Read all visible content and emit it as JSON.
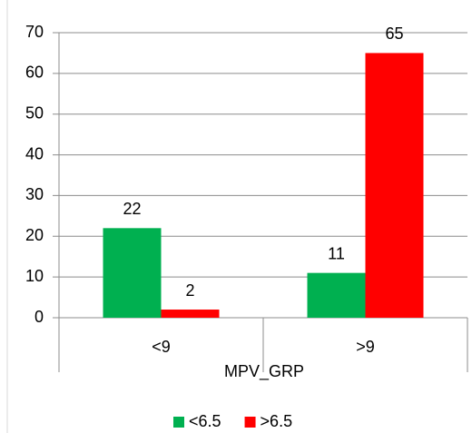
{
  "chart_data": {
    "type": "bar",
    "categories": [
      "<9",
      ">9"
    ],
    "x_label": "MPV_GRP",
    "series": [
      {
        "name": "<6.5",
        "color": "#00b050",
        "values": [
          22,
          11
        ]
      },
      {
        "name": ">6.5",
        "color": "#ff0000",
        "values": [
          2,
          65
        ]
      }
    ],
    "ylim": [
      0,
      70
    ],
    "yticks": [
      0,
      10,
      20,
      30,
      40,
      50,
      60,
      70
    ],
    "grid": true,
    "legend": "bottom",
    "data_labels": true
  }
}
